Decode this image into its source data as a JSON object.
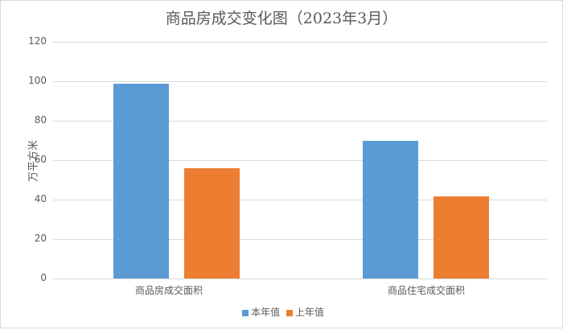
{
  "chart_data": {
    "type": "bar",
    "title": "商品房成交变化图（2023年3月）",
    "xlabel": "",
    "ylabel": "万平方米",
    "ylim": [
      0,
      120
    ],
    "yticks": [
      0,
      20,
      40,
      60,
      80,
      100,
      120
    ],
    "grid": true,
    "legend_position": "bottom",
    "categories": [
      "商品房成交面积",
      "商品住宅成交面积"
    ],
    "series": [
      {
        "name": "本年值",
        "color": "#5b9bd5",
        "values": [
          98.6,
          69.8
        ]
      },
      {
        "name": "上年值",
        "color": "#ed7d31",
        "values": [
          56.0,
          41.6
        ]
      }
    ]
  }
}
